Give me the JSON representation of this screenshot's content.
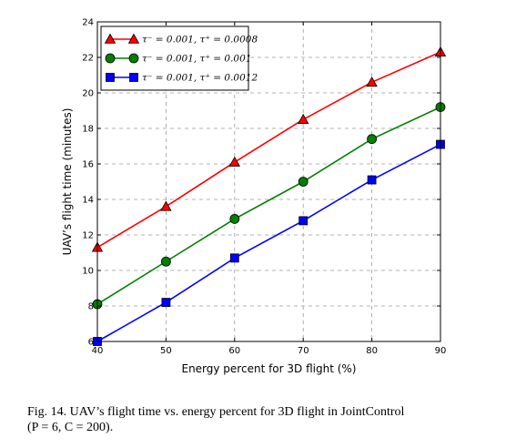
{
  "chart_data": {
    "type": "line",
    "xlabel": "Energy percent for 3D flight (%)",
    "ylabel": "UAV’s flight time (minutes)",
    "x": [
      40,
      50,
      60,
      70,
      80,
      90
    ],
    "xlim": [
      40,
      90
    ],
    "ylim": [
      6,
      24
    ],
    "xticks": [
      "40",
      "50",
      "60",
      "70",
      "80",
      "90"
    ],
    "yticks": [
      "6",
      "8",
      "10",
      "12",
      "14",
      "16",
      "18",
      "20",
      "22",
      "24"
    ],
    "grid": true,
    "legend_position": "top-left",
    "series": [
      {
        "name": "τ⁻ = 0.001, τ⁺ = 0.0008",
        "color": "#ff0000",
        "marker": "triangle",
        "values": [
          11.3,
          13.6,
          16.1,
          18.5,
          20.6,
          22.3
        ]
      },
      {
        "name": "τ⁻ = 0.001, τ⁺ = 0.001",
        "color": "#008000",
        "marker": "circle",
        "values": [
          8.1,
          10.5,
          12.9,
          15.0,
          17.4,
          19.2
        ]
      },
      {
        "name": "τ⁻ = 0.001, τ⁺ = 0.0012",
        "color": "#0000ff",
        "marker": "square",
        "values": [
          6.0,
          8.2,
          10.7,
          12.8,
          15.1,
          17.1
        ]
      }
    ]
  },
  "caption": {
    "line1": "Fig. 14.  UAV’s flight time vs. energy percent for 3D flight in JointControl",
    "line2": "(P = 6, C = 200)."
  }
}
